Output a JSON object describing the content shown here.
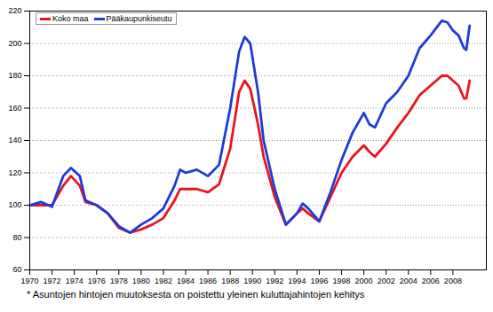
{
  "chart_data": {
    "type": "line",
    "x": [
      1970,
      1971,
      1972,
      1973,
      1973.7,
      1974.5,
      1975,
      1976,
      1977,
      1978,
      1979,
      1980,
      1981,
      1982,
      1983,
      1983.5,
      1984,
      1985,
      1986,
      1987,
      1988,
      1988.8,
      1989.3,
      1989.8,
      1990.5,
      1991,
      1992,
      1993,
      1994,
      1994.5,
      1995,
      1996,
      1997,
      1998,
      1999,
      2000,
      2000.5,
      2001,
      2002,
      2003,
      2004,
      2005,
      2006,
      2007,
      2007.5,
      2008,
      2008.5,
      2009,
      2009.2,
      2009.5
    ],
    "series": [
      {
        "name": "Koko maa",
        "color": "#e8141b",
        "values": [
          100,
          100,
          100,
          112,
          118,
          112,
          102,
          100,
          95,
          86,
          83,
          85,
          88,
          92,
          103,
          110,
          110,
          110,
          108,
          113,
          135,
          170,
          177,
          172,
          150,
          130,
          105,
          88,
          95,
          98,
          95,
          90,
          105,
          120,
          130,
          137,
          133,
          130,
          138,
          148,
          157,
          168,
          174,
          180,
          180,
          177,
          174,
          166,
          166,
          177
        ]
      },
      {
        "name": "Pääkaupunkiseutu",
        "color": "#1f3bd6",
        "values": [
          100,
          102,
          99,
          118,
          123,
          118,
          103,
          100,
          95,
          87,
          83,
          88,
          92,
          98,
          112,
          122,
          120,
          122,
          118,
          125,
          160,
          195,
          204,
          200,
          170,
          140,
          110,
          88,
          95,
          101,
          98,
          90,
          108,
          128,
          145,
          157,
          150,
          148,
          163,
          170,
          180,
          197,
          205,
          214,
          213,
          208,
          205,
          197,
          196,
          211
        ]
      }
    ],
    "xlim": [
      1970,
      2011
    ],
    "xticks": [
      1970,
      1972,
      1974,
      1976,
      1978,
      1980,
      1982,
      1984,
      1986,
      1988,
      1990,
      1992,
      1994,
      1996,
      1998,
      2000,
      2002,
      2004,
      2006,
      2008
    ],
    "ylim": [
      60,
      220
    ],
    "yticks": [
      60,
      80,
      100,
      120,
      140,
      160,
      180,
      200,
      220
    ],
    "grid": true,
    "legend": "top-left",
    "caption": "* Asuntojen hintojen muutoksesta on poistettu yleinen kuluttajahintojen kehitys"
  }
}
